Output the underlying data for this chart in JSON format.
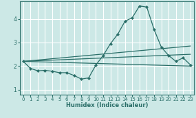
{
  "xlabel": "Humidex (Indice chaleur)",
  "bg_color": "#cce8e6",
  "grid_color": "#ffffff",
  "line_color": "#2a6e68",
  "xlim": [
    -0.5,
    23.5
  ],
  "ylim": [
    0.8,
    4.75
  ],
  "yticks": [
    1,
    2,
    3,
    4
  ],
  "xticks": [
    0,
    1,
    2,
    3,
    4,
    5,
    6,
    7,
    8,
    9,
    10,
    11,
    12,
    13,
    14,
    15,
    16,
    17,
    18,
    19,
    20,
    21,
    22,
    23
  ],
  "main_series": {
    "x": [
      0,
      1,
      2,
      3,
      4,
      5,
      6,
      7,
      8,
      9,
      10,
      11,
      12,
      13,
      14,
      15,
      16,
      17,
      18,
      19,
      20,
      21,
      22,
      23
    ],
    "y": [
      2.2,
      1.9,
      1.8,
      1.82,
      1.78,
      1.72,
      1.72,
      1.6,
      1.45,
      1.5,
      2.05,
      2.45,
      2.95,
      3.35,
      3.9,
      4.05,
      4.55,
      4.5,
      3.55,
      2.8,
      2.45,
      2.2,
      2.35,
      2.05
    ]
  },
  "straight_lines": [
    {
      "x0": 0,
      "y0": 2.2,
      "x1": 23,
      "y1": 2.0
    },
    {
      "x0": 0,
      "y0": 2.2,
      "x1": 23,
      "y1": 2.5
    },
    {
      "x0": 0,
      "y0": 2.2,
      "x1": 23,
      "y1": 2.85
    }
  ]
}
